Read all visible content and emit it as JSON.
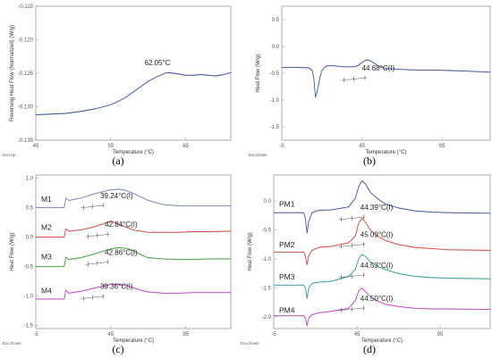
{
  "panels": [
    {
      "id": "a",
      "caption": "(a)",
      "ylabel": "Reversing Heat Flow (Normalized) (W/g)",
      "xlabel": "Temperature (°C)",
      "corner": "Exo Up",
      "xlim": [
        45,
        71
      ],
      "ylim": [
        -0.135,
        -0.115
      ],
      "xticks": [
        "45",
        "55",
        "65"
      ],
      "xtick_values": [
        45,
        55,
        65
      ],
      "yticks": [
        "-0.115",
        "-0.120",
        "-0.125",
        "-0.130",
        "-0.135"
      ],
      "ytick_values": [
        -0.115,
        -0.12,
        -0.125,
        -0.13,
        -0.135
      ],
      "annotations": [
        {
          "text": "62.05°C",
          "x": 59.5,
          "y": -0.1238
        }
      ],
      "series": [
        {
          "color": "#3c4fa0",
          "x": [
            45,
            47,
            49,
            51,
            53,
            55,
            56,
            57,
            58,
            59,
            60,
            61,
            62,
            62.5,
            63,
            64,
            65,
            66,
            67,
            68,
            69,
            70,
            71
          ],
          "y": [
            -0.1312,
            -0.1311,
            -0.131,
            -0.1307,
            -0.1303,
            -0.1297,
            -0.1292,
            -0.1286,
            -0.1278,
            -0.127,
            -0.1262,
            -0.1256,
            -0.1251,
            -0.1249,
            -0.12495,
            -0.1251,
            -0.1253,
            -0.1253,
            -0.1252,
            -0.1253,
            -0.1254,
            -0.1252,
            -0.1249
          ]
        }
      ]
    },
    {
      "id": "b",
      "caption": "(b)",
      "ylabel": "Heat Flow (W/g)",
      "xlabel": "Temperature (°C)",
      "corner": "Exo Down",
      "xlim": [
        -5,
        125
      ],
      "ylim": [
        -1.75,
        0.75
      ],
      "xticks": [
        "-5",
        "45",
        "95"
      ],
      "xtick_values": [
        -5,
        45,
        95
      ],
      "yticks": [
        "0.5",
        "0.0",
        "-0.5",
        "-1.0",
        "-1.5"
      ],
      "ytick_values": [
        0.5,
        0,
        -0.5,
        -1,
        -1.5
      ],
      "annotations": [
        {
          "text": "44.68°C(I)",
          "x": 45,
          "y": -0.45
        }
      ],
      "series": [
        {
          "color": "#3c4fa0",
          "x": [
            -5,
            5,
            12,
            14,
            15,
            16,
            17,
            18,
            19,
            20,
            22,
            24,
            27,
            30,
            35,
            40,
            43,
            45,
            47,
            49,
            51,
            53,
            56,
            60,
            70,
            80,
            90,
            100,
            110,
            125
          ],
          "y": [
            -0.39,
            -0.39,
            -0.4,
            -0.45,
            -0.6,
            -0.95,
            -0.85,
            -0.7,
            -0.55,
            -0.45,
            -0.38,
            -0.36,
            -0.36,
            -0.37,
            -0.38,
            -0.38,
            -0.35,
            -0.3,
            -0.26,
            -0.25,
            -0.28,
            -0.32,
            -0.38,
            -0.41,
            -0.43,
            -0.44,
            -0.44,
            -0.45,
            -0.46,
            -0.48
          ]
        }
      ]
    },
    {
      "id": "c",
      "caption": "(c)",
      "ylabel": "Heat Flow (W/g)",
      "xlabel": "Temperature (°C)",
      "corner": "Exo Down",
      "xlim": [
        -5,
        125
      ],
      "ylim": [
        -1.55,
        1.05
      ],
      "xticks": [
        "-5",
        "45",
        "95"
      ],
      "xtick_values": [
        -5,
        45,
        95
      ],
      "yticks": [
        "1.0",
        "0.5",
        "0.0",
        "-0.5",
        "-1.0",
        "-1.5"
      ],
      "ytick_values": [
        1,
        0.5,
        0,
        -0.5,
        -1,
        -1.5
      ],
      "annotations": [
        {
          "text": "39.24°C(I)",
          "x": 38,
          "y": 0.66
        },
        {
          "text": "42.84°C(I)",
          "x": 41,
          "y": 0.17
        },
        {
          "text": "42.86°C(I)",
          "x": 41,
          "y": -0.3
        },
        {
          "text": "39.36°C(I)",
          "x": 38,
          "y": -0.88
        }
      ],
      "series_labels": [
        {
          "text": "M1",
          "x": -1,
          "y": 0.6
        },
        {
          "text": "M2",
          "x": -1,
          "y": 0.12
        },
        {
          "text": "M3",
          "x": -1,
          "y": -0.38
        },
        {
          "text": "M4",
          "x": -1,
          "y": -0.95
        }
      ],
      "series": [
        {
          "color": "#7a8ab5",
          "x": [
            -5,
            5,
            14,
            15,
            17,
            25,
            35,
            45,
            50,
            55,
            60,
            65,
            70,
            80,
            90,
            100,
            110,
            125
          ],
          "y": [
            0.5,
            0.5,
            0.5,
            0.66,
            0.62,
            0.66,
            0.74,
            0.8,
            0.81,
            0.79,
            0.74,
            0.68,
            0.62,
            0.55,
            0.53,
            0.53,
            0.53,
            0.53
          ]
        },
        {
          "color": "#d6453d",
          "x": [
            -5,
            5,
            14,
            15,
            17,
            25,
            35,
            45,
            47,
            52,
            60,
            70,
            80,
            90,
            100,
            110,
            125
          ],
          "y": [
            0.0,
            0.0,
            0.0,
            0.14,
            0.1,
            0.12,
            0.18,
            0.27,
            0.25,
            0.2,
            0.12,
            0.08,
            0.08,
            0.08,
            0.09,
            0.09,
            0.1
          ]
        },
        {
          "color": "#47a03f",
          "x": [
            -5,
            5,
            14,
            15,
            17,
            25,
            35,
            45,
            50,
            55,
            60,
            65,
            70,
            80,
            90,
            100,
            110,
            125
          ],
          "y": [
            -0.5,
            -0.5,
            -0.5,
            -0.34,
            -0.38,
            -0.35,
            -0.28,
            -0.2,
            -0.18,
            -0.19,
            -0.23,
            -0.3,
            -0.35,
            -0.37,
            -0.38,
            -0.38,
            -0.37,
            -0.37
          ]
        },
        {
          "color": "#c63cc6",
          "x": [
            -5,
            5,
            14,
            15,
            17,
            25,
            35,
            45,
            50,
            55,
            60,
            65,
            70,
            80,
            90,
            100,
            110,
            125
          ],
          "y": [
            -1.05,
            -1.05,
            -1.05,
            -0.9,
            -0.95,
            -0.92,
            -0.86,
            -0.8,
            -0.8,
            -0.82,
            -0.86,
            -0.9,
            -0.93,
            -0.95,
            -0.95,
            -0.94,
            -0.94,
            -0.94
          ]
        }
      ]
    },
    {
      "id": "d",
      "caption": "(d)",
      "ylabel": "Heat Flow (W/g)",
      "xlabel": "Temperature (°C)",
      "corner": "Exo Down",
      "xlim": [
        -5,
        125
      ],
      "ylim": [
        -2.2,
        0.45
      ],
      "xticks": [
        "-5",
        "45",
        "95"
      ],
      "xtick_values": [
        -5,
        45,
        95
      ],
      "yticks": [
        "0.0",
        "-0.5",
        "-1.0",
        "-1.5",
        "-2.0"
      ],
      "ytick_values": [
        0,
        -0.5,
        -1,
        -1.5,
        -2
      ],
      "annotations": [
        {
          "text": "44.39°C(I)",
          "x": 47,
          "y": -0.15
        },
        {
          "text": "45.09°C(I)",
          "x": 47,
          "y": -0.62
        },
        {
          "text": "44.53°C(I)",
          "x": 47,
          "y": -1.15
        },
        {
          "text": "44.50°C(I)",
          "x": 47,
          "y": -1.72
        }
      ],
      "series_labels": [
        {
          "text": "PM1",
          "x": -1,
          "y": -0.1
        },
        {
          "text": "PM2",
          "x": -1,
          "y": -0.8
        },
        {
          "text": "PM3",
          "x": -1,
          "y": -1.35
        },
        {
          "text": "PM4",
          "x": -1,
          "y": -1.93
        }
      ],
      "series": [
        {
          "color": "#3c4fa0",
          "x": [
            -5,
            5,
            13,
            14,
            15,
            16,
            18,
            22,
            30,
            40,
            44,
            46,
            48,
            50,
            53,
            57,
            62,
            70,
            80,
            90,
            100,
            125
          ],
          "y": [
            -0.2,
            -0.2,
            -0.2,
            -0.3,
            -0.55,
            -0.35,
            -0.2,
            -0.16,
            -0.15,
            -0.1,
            0.05,
            0.25,
            0.35,
            0.3,
            0.15,
            0.05,
            -0.05,
            -0.12,
            -0.17,
            -0.19,
            -0.2,
            -0.21
          ]
        },
        {
          "color": "#d6453d",
          "x": [
            -5,
            5,
            13,
            14,
            15,
            16,
            18,
            22,
            30,
            40,
            44,
            46,
            48,
            50,
            53,
            57,
            62,
            70,
            80,
            90,
            100,
            125
          ],
          "y": [
            -0.88,
            -0.88,
            -0.88,
            -0.95,
            -1.1,
            -0.95,
            -0.85,
            -0.8,
            -0.78,
            -0.72,
            -0.6,
            -0.38,
            -0.3,
            -0.36,
            -0.5,
            -0.6,
            -0.68,
            -0.75,
            -0.8,
            -0.82,
            -0.84,
            -0.85
          ]
        },
        {
          "color": "#29a39a",
          "x": [
            -5,
            5,
            13,
            14,
            15,
            16,
            18,
            22,
            30,
            40,
            44,
            46,
            48,
            50,
            53,
            57,
            62,
            70,
            80,
            90,
            100,
            125
          ],
          "y": [
            -1.45,
            -1.45,
            -1.45,
            -1.5,
            -1.68,
            -1.5,
            -1.42,
            -1.4,
            -1.38,
            -1.3,
            -1.18,
            -1.0,
            -0.92,
            -0.95,
            -1.05,
            -1.12,
            -1.18,
            -1.25,
            -1.3,
            -1.32,
            -1.33,
            -1.34
          ]
        },
        {
          "color": "#c63cc6",
          "x": [
            -5,
            5,
            13,
            14,
            15,
            16,
            18,
            22,
            30,
            40,
            44,
            46,
            48,
            50,
            53,
            57,
            62,
            70,
            80,
            90,
            100,
            125
          ],
          "y": [
            -1.98,
            -1.98,
            -1.98,
            -2.02,
            -2.15,
            -2.02,
            -1.96,
            -1.93,
            -1.9,
            -1.85,
            -1.72,
            -1.55,
            -1.5,
            -1.56,
            -1.65,
            -1.72,
            -1.78,
            -1.82,
            -1.85,
            -1.86,
            -1.86,
            -1.87
          ]
        }
      ]
    }
  ],
  "chart_data": [
    {
      "type": "line",
      "title": "",
      "xlabel": "Temperature (°C)",
      "ylabel": "Reversing Heat Flow (Normalized) (W/g)",
      "xlim": [
        45,
        71
      ],
      "ylim": [
        -0.135,
        -0.115
      ],
      "annotation": "62.05°C",
      "grid": false
    },
    {
      "type": "line",
      "title": "",
      "xlabel": "Temperature (°C)",
      "ylabel": "Heat Flow (W/g)",
      "xlim": [
        -5,
        125
      ],
      "ylim": [
        -1.75,
        0.75
      ],
      "annotation": "44.68°C(I)",
      "grid": false
    },
    {
      "type": "line",
      "title": "",
      "xlabel": "Temperature (°C)",
      "ylabel": "Heat Flow (W/g)",
      "xlim": [
        -5,
        125
      ],
      "ylim": [
        -1.55,
        1.05
      ],
      "series_names": [
        "M1",
        "M2",
        "M3",
        "M4"
      ],
      "annotations": [
        "39.24°C(I)",
        "42.84°C(I)",
        "42.86°C(I)",
        "39.36°C(I)"
      ],
      "grid": false
    },
    {
      "type": "line",
      "title": "",
      "xlabel": "Temperature (°C)",
      "ylabel": "Heat Flow (W/g)",
      "xlim": [
        -5,
        125
      ],
      "ylim": [
        -2.2,
        0.45
      ],
      "series_names": [
        "PM1",
        "PM2",
        "PM3",
        "PM4"
      ],
      "annotations": [
        "44.39°C(I)",
        "45.09°C(I)",
        "44.53°C(I)",
        "44.50°C(I)"
      ],
      "grid": false
    }
  ]
}
